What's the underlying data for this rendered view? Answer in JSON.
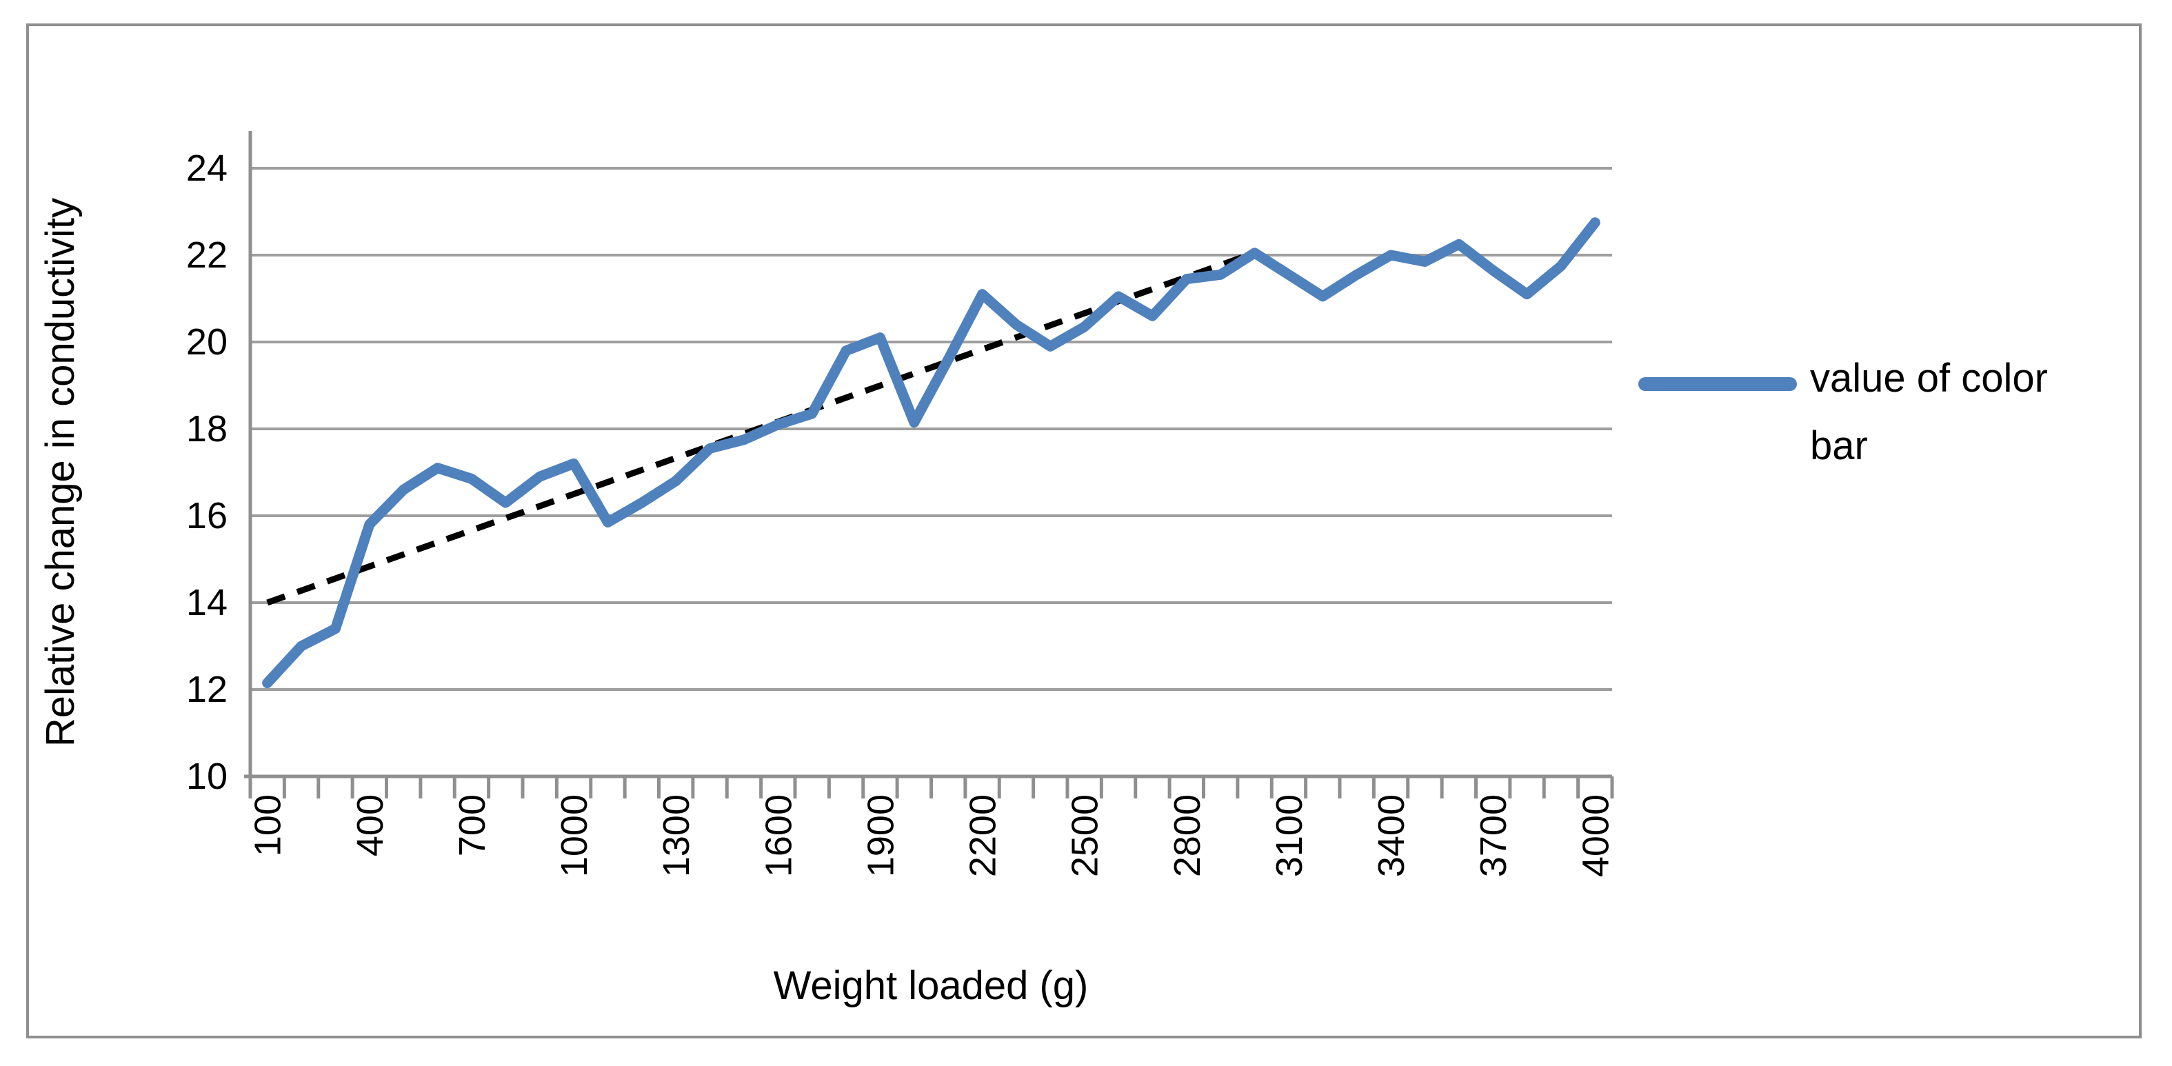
{
  "chart_data": {
    "type": "line",
    "title": "",
    "xlabel": "Weight loaded (g)",
    "ylabel": "Relative change in conductivity",
    "x": [
      100,
      200,
      300,
      400,
      500,
      600,
      700,
      800,
      900,
      1000,
      1100,
      1200,
      1300,
      1400,
      1500,
      1600,
      1700,
      1800,
      1900,
      2000,
      2100,
      2200,
      2300,
      2400,
      2500,
      2600,
      2700,
      2800,
      2900,
      3000,
      3100,
      3200,
      3300,
      3400,
      3500,
      3600,
      3700,
      3800,
      3900,
      4000
    ],
    "x_tick_labels": [
      "100",
      "400",
      "700",
      "1000",
      "1300",
      "1600",
      "1900",
      "2200",
      "2500",
      "2800",
      "3100",
      "3400",
      "3700",
      "4000"
    ],
    "ylim": [
      10,
      24
    ],
    "ytick_step": 2,
    "ytick_labels": [
      "10",
      "12",
      "14",
      "16",
      "18",
      "20",
      "22",
      "24"
    ],
    "grid": true,
    "legend_position": "right",
    "series": [
      {
        "name": "value of color bar",
        "color": "#4F81BD",
        "style": "solid",
        "values": [
          12.15,
          13.0,
          13.4,
          15.8,
          16.6,
          17.1,
          16.85,
          16.3,
          16.9,
          17.2,
          15.85,
          16.3,
          16.8,
          17.55,
          17.75,
          18.1,
          18.35,
          19.8,
          20.1,
          18.15,
          19.6,
          21.1,
          20.4,
          19.9,
          20.35,
          21.05,
          20.6,
          21.45,
          21.55,
          22.05,
          21.55,
          21.05,
          21.55,
          22.0,
          21.85,
          22.25,
          21.65,
          21.1,
          21.75,
          22.75
        ]
      }
    ],
    "trendline": {
      "name": "linear-trendline",
      "color": "#000000",
      "style": "dashed",
      "x_start": 100,
      "y_start": 14.0,
      "x_end": 3000,
      "y_end": 22.05
    }
  },
  "colors": {
    "series_blue": "#4F81BD",
    "gridline": "#9E9E9E",
    "axis": "#8F8F8F",
    "border": "#8F8F8F",
    "text": "#000000",
    "background": "#FFFFFF"
  }
}
